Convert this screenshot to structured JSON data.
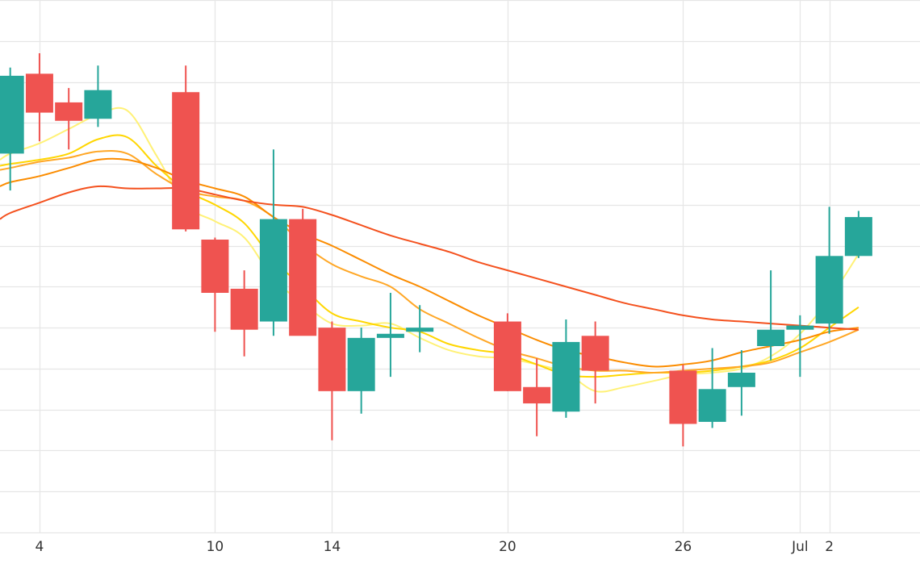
{
  "chart_data": {
    "type": "candlestick",
    "x_tick_labels": [
      {
        "day": 4,
        "label": "4"
      },
      {
        "day": 10,
        "label": "10"
      },
      {
        "day": 14,
        "label": "14"
      },
      {
        "day": 20,
        "label": "20"
      },
      {
        "day": 26,
        "label": "26"
      },
      {
        "day": 30,
        "label": "Jul"
      },
      {
        "day": 31,
        "label": "2"
      }
    ],
    "xlim": [
      2.65,
      34.1
    ],
    "ylim": [
      0,
      1.3
    ],
    "grid": true,
    "colors": {
      "up": "#26a69a",
      "down": "#ef5350",
      "grid": "#e6e6e6",
      "ma_lines": [
        "#fff176",
        "#ffd600",
        "#ffa726",
        "#fb8c00",
        "#f4511e"
      ]
    },
    "candles": [
      {
        "day": 3,
        "open": 0.925,
        "high": 1.135,
        "low": 0.835,
        "close": 1.115
      },
      {
        "day": 4,
        "open": 1.12,
        "high": 1.17,
        "low": 0.955,
        "close": 1.025
      },
      {
        "day": 5,
        "open": 1.05,
        "high": 1.085,
        "low": 0.935,
        "close": 1.005
      },
      {
        "day": 6,
        "open": 1.01,
        "high": 1.14,
        "low": 0.99,
        "close": 1.08
      },
      {
        "day": 9,
        "open": 1.075,
        "high": 1.14,
        "low": 0.735,
        "close": 0.74
      },
      {
        "day": 10,
        "open": 0.715,
        "high": 0.72,
        "low": 0.49,
        "close": 0.585
      },
      {
        "day": 11,
        "open": 0.595,
        "high": 0.64,
        "low": 0.43,
        "close": 0.495
      },
      {
        "day": 12,
        "open": 0.515,
        "high": 0.935,
        "low": 0.48,
        "close": 0.765
      },
      {
        "day": 13,
        "open": 0.765,
        "high": 0.79,
        "low": 0.49,
        "close": 0.48
      },
      {
        "day": 14,
        "open": 0.5,
        "high": 0.515,
        "low": 0.225,
        "close": 0.345
      },
      {
        "day": 15,
        "open": 0.345,
        "high": 0.5,
        "low": 0.29,
        "close": 0.475
      },
      {
        "day": 16,
        "open": 0.475,
        "high": 0.585,
        "low": 0.38,
        "close": 0.485
      },
      {
        "day": 17,
        "open": 0.49,
        "high": 0.555,
        "low": 0.44,
        "close": 0.5
      },
      {
        "day": 20,
        "open": 0.515,
        "high": 0.535,
        "low": 0.345,
        "close": 0.345
      },
      {
        "day": 21,
        "open": 0.355,
        "high": 0.425,
        "low": 0.235,
        "close": 0.315
      },
      {
        "day": 22,
        "open": 0.295,
        "high": 0.52,
        "low": 0.28,
        "close": 0.465
      },
      {
        "day": 23,
        "open": 0.48,
        "high": 0.515,
        "low": 0.315,
        "close": 0.395
      },
      {
        "day": 26,
        "open": 0.395,
        "high": 0.41,
        "low": 0.21,
        "close": 0.265
      },
      {
        "day": 27,
        "open": 0.27,
        "high": 0.45,
        "low": 0.255,
        "close": 0.35
      },
      {
        "day": 28,
        "open": 0.355,
        "high": 0.445,
        "low": 0.285,
        "close": 0.39
      },
      {
        "day": 29,
        "open": 0.455,
        "high": 0.64,
        "low": 0.42,
        "close": 0.495
      },
      {
        "day": 30,
        "open": 0.495,
        "high": 0.53,
        "low": 0.38,
        "close": 0.505
      },
      {
        "day": 31,
        "open": 0.51,
        "high": 0.795,
        "low": 0.485,
        "close": 0.675
      },
      {
        "day": 32,
        "open": 0.675,
        "high": 0.785,
        "low": 0.67,
        "close": 0.77
      }
    ],
    "moving_averages": [
      {
        "points": [
          [
            2.65,
            0.91
          ],
          [
            3,
            0.925
          ],
          [
            4,
            0.95
          ],
          [
            5,
            0.985
          ],
          [
            6,
            1.02
          ],
          [
            7,
            1.03
          ],
          [
            8,
            0.92
          ],
          [
            9,
            0.8
          ],
          [
            10,
            0.76
          ],
          [
            11,
            0.72
          ],
          [
            12,
            0.62
          ],
          [
            13,
            0.56
          ],
          [
            14,
            0.51
          ],
          [
            15,
            0.505
          ],
          [
            16,
            0.51
          ],
          [
            17,
            0.475
          ],
          [
            18,
            0.445
          ],
          [
            19,
            0.43
          ],
          [
            20,
            0.425
          ],
          [
            21,
            0.41
          ],
          [
            22,
            0.39
          ],
          [
            23,
            0.345
          ],
          [
            24,
            0.355
          ],
          [
            25,
            0.37
          ],
          [
            26,
            0.385
          ],
          [
            27,
            0.39
          ],
          [
            28,
            0.4
          ],
          [
            29,
            0.43
          ],
          [
            30,
            0.485
          ],
          [
            31,
            0.57
          ],
          [
            32,
            0.68
          ]
        ]
      },
      {
        "points": [
          [
            2.65,
            0.895
          ],
          [
            3,
            0.9
          ],
          [
            4,
            0.91
          ],
          [
            5,
            0.925
          ],
          [
            6,
            0.96
          ],
          [
            7,
            0.965
          ],
          [
            8,
            0.895
          ],
          [
            9,
            0.835
          ],
          [
            10,
            0.8
          ],
          [
            11,
            0.755
          ],
          [
            12,
            0.665
          ],
          [
            13,
            0.6
          ],
          [
            14,
            0.535
          ],
          [
            15,
            0.515
          ],
          [
            16,
            0.5
          ],
          [
            17,
            0.49
          ],
          [
            18,
            0.46
          ],
          [
            19,
            0.445
          ],
          [
            20,
            0.435
          ],
          [
            21,
            0.41
          ],
          [
            22,
            0.385
          ],
          [
            23,
            0.38
          ],
          [
            24,
            0.385
          ],
          [
            25,
            0.39
          ],
          [
            26,
            0.39
          ],
          [
            27,
            0.395
          ],
          [
            28,
            0.405
          ],
          [
            29,
            0.42
          ],
          [
            30,
            0.45
          ],
          [
            31,
            0.5
          ],
          [
            32,
            0.55
          ]
        ]
      },
      {
        "points": [
          [
            2.65,
            0.885
          ],
          [
            3,
            0.89
          ],
          [
            4,
            0.905
          ],
          [
            5,
            0.915
          ],
          [
            6,
            0.93
          ],
          [
            7,
            0.925
          ],
          [
            8,
            0.875
          ],
          [
            9,
            0.835
          ],
          [
            10,
            0.82
          ],
          [
            11,
            0.81
          ],
          [
            12,
            0.77
          ],
          [
            13,
            0.705
          ],
          [
            14,
            0.655
          ],
          [
            15,
            0.625
          ],
          [
            16,
            0.6
          ],
          [
            17,
            0.545
          ],
          [
            18,
            0.51
          ],
          [
            19,
            0.475
          ],
          [
            20,
            0.445
          ],
          [
            21,
            0.425
          ],
          [
            22,
            0.405
          ],
          [
            23,
            0.395
          ],
          [
            24,
            0.395
          ],
          [
            25,
            0.39
          ],
          [
            26,
            0.395
          ],
          [
            27,
            0.4
          ],
          [
            28,
            0.405
          ],
          [
            29,
            0.415
          ],
          [
            30,
            0.44
          ],
          [
            31,
            0.465
          ],
          [
            32,
            0.495
          ]
        ]
      },
      {
        "points": [
          [
            2.65,
            0.845
          ],
          [
            3,
            0.855
          ],
          [
            4,
            0.87
          ],
          [
            5,
            0.89
          ],
          [
            6,
            0.91
          ],
          [
            7,
            0.91
          ],
          [
            8,
            0.89
          ],
          [
            9,
            0.86
          ],
          [
            10,
            0.84
          ],
          [
            11,
            0.82
          ],
          [
            12,
            0.77
          ],
          [
            13,
            0.73
          ],
          [
            14,
            0.7
          ],
          [
            15,
            0.665
          ],
          [
            16,
            0.63
          ],
          [
            17,
            0.6
          ],
          [
            18,
            0.565
          ],
          [
            19,
            0.53
          ],
          [
            20,
            0.5
          ],
          [
            21,
            0.47
          ],
          [
            22,
            0.445
          ],
          [
            23,
            0.43
          ],
          [
            24,
            0.415
          ],
          [
            25,
            0.405
          ],
          [
            26,
            0.41
          ],
          [
            27,
            0.42
          ],
          [
            28,
            0.44
          ],
          [
            29,
            0.455
          ],
          [
            30,
            0.47
          ],
          [
            31,
            0.49
          ],
          [
            32,
            0.5
          ]
        ]
      },
      {
        "points": [
          [
            2.65,
            0.765
          ],
          [
            3,
            0.78
          ],
          [
            4,
            0.805
          ],
          [
            5,
            0.83
          ],
          [
            6,
            0.845
          ],
          [
            7,
            0.84
          ],
          [
            8,
            0.84
          ],
          [
            9,
            0.84
          ],
          [
            10,
            0.825
          ],
          [
            11,
            0.81
          ],
          [
            12,
            0.8
          ],
          [
            13,
            0.795
          ],
          [
            14,
            0.775
          ],
          [
            15,
            0.75
          ],
          [
            16,
            0.725
          ],
          [
            17,
            0.705
          ],
          [
            18,
            0.685
          ],
          [
            19,
            0.66
          ],
          [
            20,
            0.64
          ],
          [
            21,
            0.62
          ],
          [
            22,
            0.6
          ],
          [
            23,
            0.58
          ],
          [
            24,
            0.56
          ],
          [
            25,
            0.545
          ],
          [
            26,
            0.53
          ],
          [
            27,
            0.52
          ],
          [
            28,
            0.515
          ],
          [
            29,
            0.51
          ],
          [
            30,
            0.505
          ],
          [
            31,
            0.5
          ],
          [
            32,
            0.495
          ]
        ]
      }
    ]
  }
}
